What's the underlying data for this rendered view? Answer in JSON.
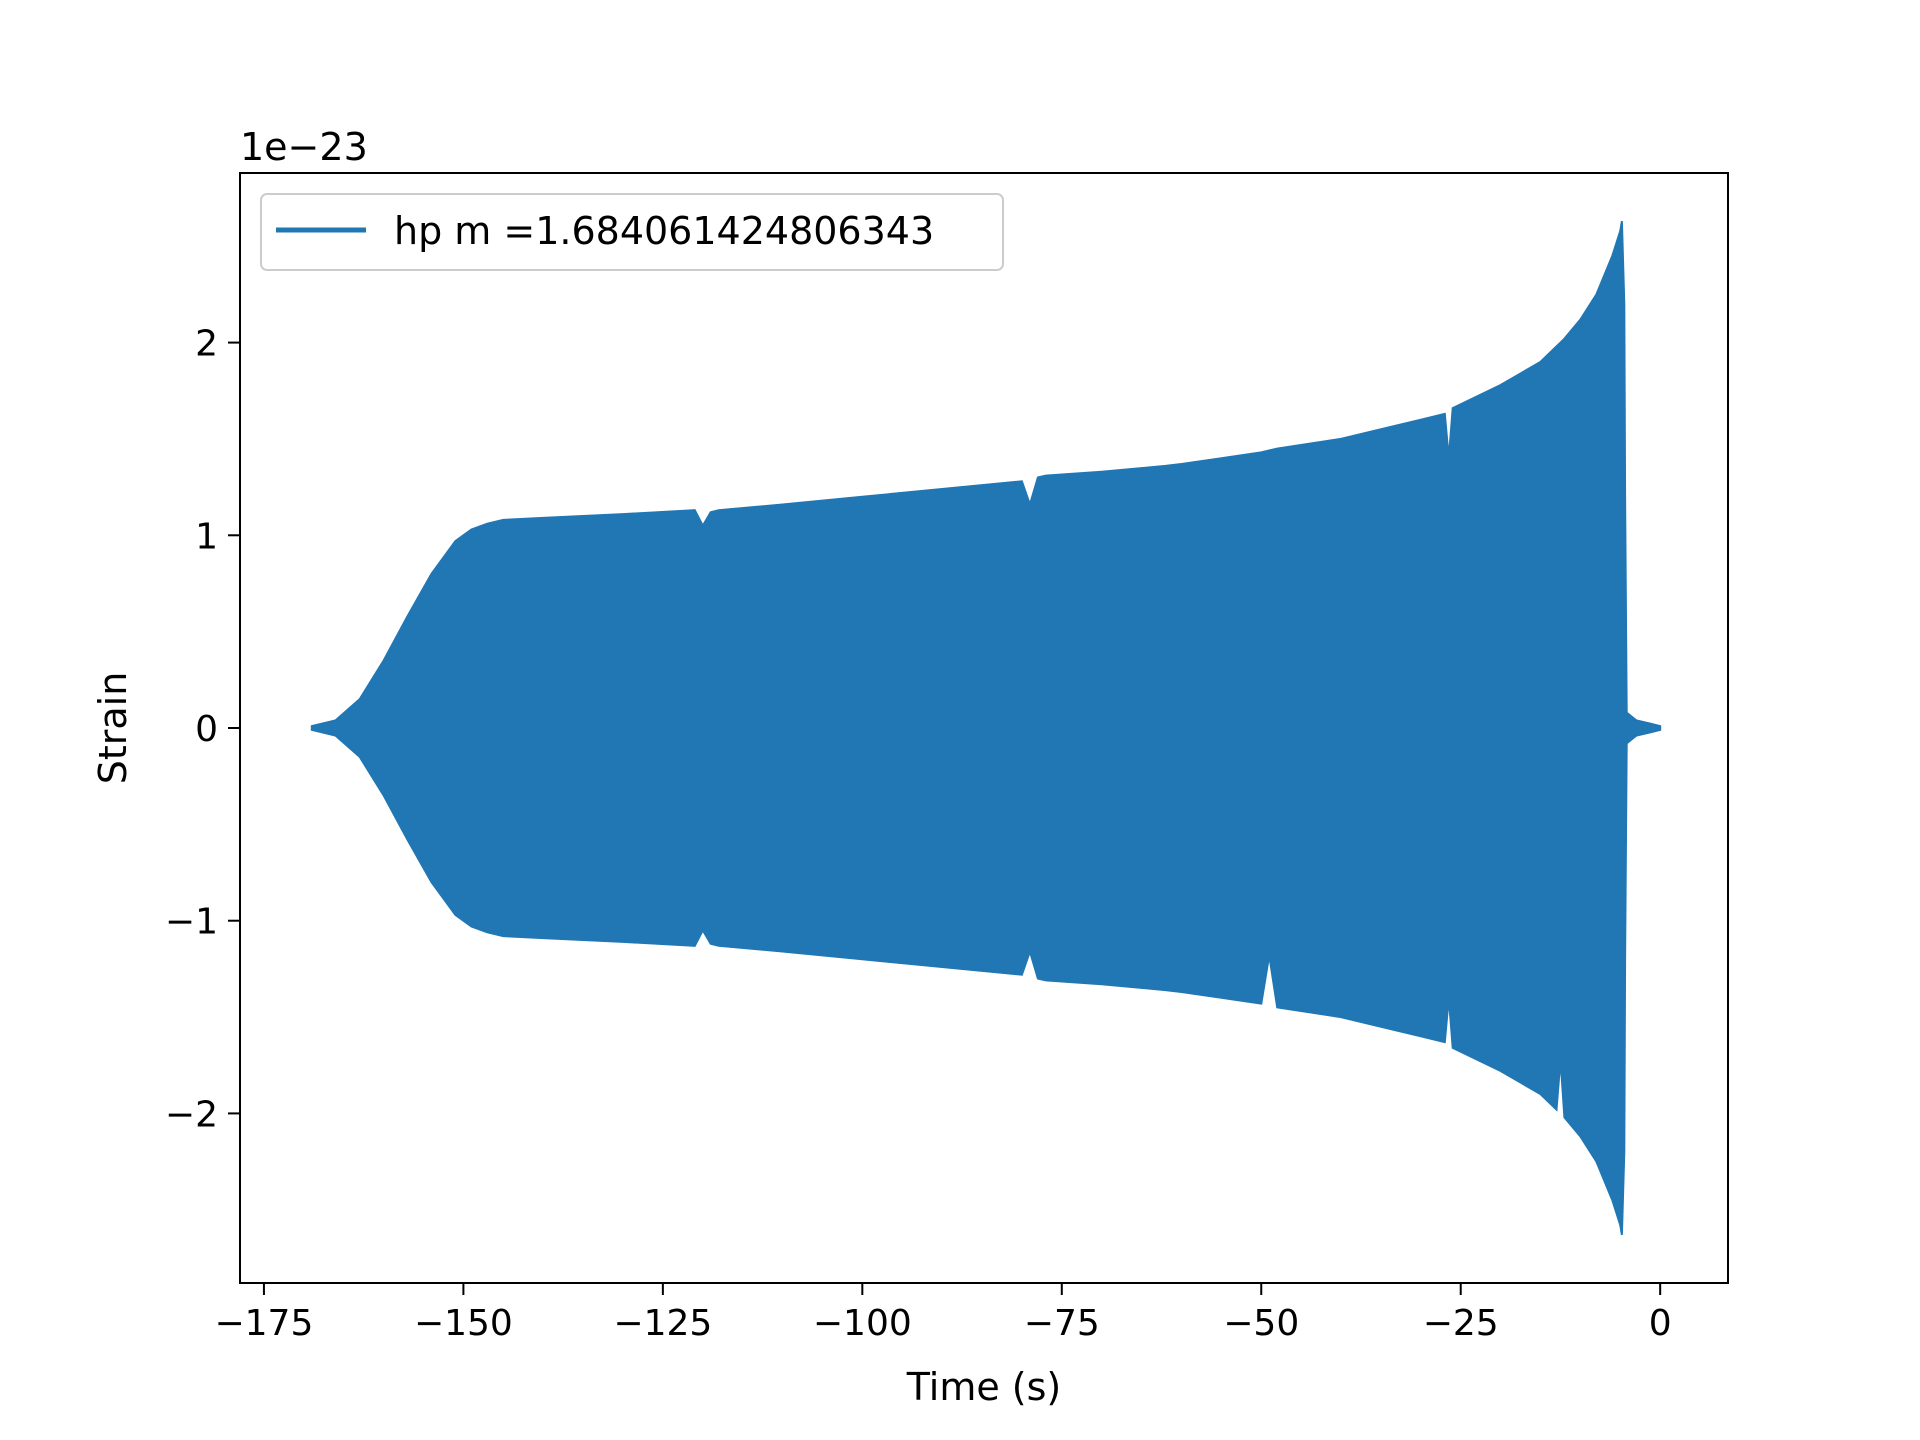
{
  "chart_data": {
    "type": "area",
    "title": "",
    "xlabel": "Time (s)",
    "ylabel": "Strain",
    "offset_text": "1e−23",
    "xlim": [
      -178,
      8.5
    ],
    "ylim": [
      -2.88,
      2.88
    ],
    "x_ticks": [
      {
        "value": -175,
        "label": "−175"
      },
      {
        "value": -150,
        "label": "−150"
      },
      {
        "value": -125,
        "label": "−125"
      },
      {
        "value": -100,
        "label": "−100"
      },
      {
        "value": -75,
        "label": "−75"
      },
      {
        "value": -50,
        "label": "−50"
      },
      {
        "value": -25,
        "label": "−25"
      },
      {
        "value": 0,
        "label": "0"
      }
    ],
    "y_ticks": [
      {
        "value": -2,
        "label": "−2"
      },
      {
        "value": -1,
        "label": "−1"
      },
      {
        "value": 0,
        "label": "0"
      },
      {
        "value": 1,
        "label": "1"
      },
      {
        "value": 2,
        "label": "2"
      }
    ],
    "grid": false,
    "legend": {
      "position": "upper-left",
      "entries": [
        "hp m =1.684061424806343"
      ]
    },
    "series": [
      {
        "name": "hp m =1.684061424806343",
        "color": "#2077b4",
        "description_x": [
          -169,
          -166,
          -163,
          -160,
          -157,
          -154,
          -151,
          -149,
          -147,
          -145,
          -140,
          -130,
          -121,
          -120,
          -119,
          -118,
          -110,
          -100,
          -90,
          -80,
          -79,
          -78,
          -77,
          -70,
          -62,
          -60,
          -55,
          -50,
          -49,
          -48,
          -40,
          -30,
          -27,
          -26.5,
          -26,
          -20,
          -15,
          -13,
          -12.5,
          -12,
          -10,
          -8,
          -6,
          -5,
          -4.8,
          -4.5,
          -4.4,
          -4.2,
          -3,
          -2,
          -1,
          0
        ],
        "upper": [
          0.01,
          0.04,
          0.15,
          0.35,
          0.58,
          0.8,
          0.97,
          1.03,
          1.06,
          1.08,
          1.09,
          1.11,
          1.13,
          1.05,
          1.12,
          1.13,
          1.16,
          1.2,
          1.24,
          1.28,
          1.16,
          1.3,
          1.31,
          1.33,
          1.36,
          1.37,
          1.4,
          1.43,
          1.44,
          1.45,
          1.5,
          1.6,
          1.63,
          1.4,
          1.66,
          1.78,
          1.9,
          1.98,
          2.0,
          2.02,
          2.12,
          2.25,
          2.45,
          2.58,
          2.63,
          2.2,
          1.2,
          0.08,
          0.04,
          0.03,
          0.02,
          0.01
        ],
        "lower": [
          -0.01,
          -0.04,
          -0.15,
          -0.35,
          -0.58,
          -0.8,
          -0.97,
          -1.03,
          -1.06,
          -1.08,
          -1.09,
          -1.11,
          -1.13,
          -1.05,
          -1.12,
          -1.13,
          -1.16,
          -1.2,
          -1.24,
          -1.28,
          -1.16,
          -1.3,
          -1.31,
          -1.33,
          -1.36,
          -1.37,
          -1.4,
          -1.43,
          -1.18,
          -1.45,
          -1.5,
          -1.6,
          -1.63,
          -1.4,
          -1.66,
          -1.78,
          -1.9,
          -1.98,
          -1.72,
          -2.02,
          -2.12,
          -2.25,
          -2.45,
          -2.58,
          -2.63,
          -2.2,
          -1.2,
          -0.08,
          -0.04,
          -0.03,
          -0.02,
          -0.01
        ]
      }
    ]
  }
}
